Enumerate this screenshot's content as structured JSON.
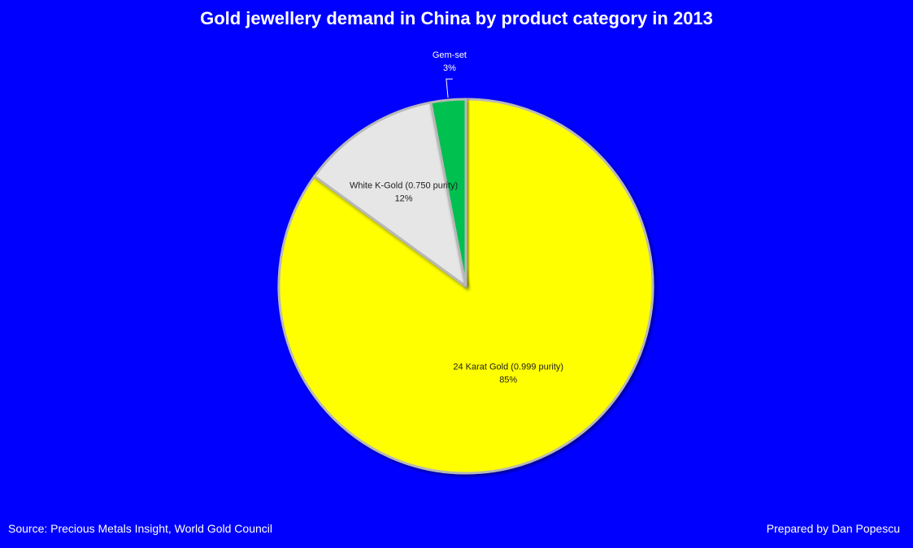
{
  "title": "Gold jewellery demand in China by product category in 2013",
  "source": "Source: Precious Metals Insight, World Gold Council",
  "credit": "Prepared by Dan Popescu",
  "chart_data": {
    "type": "pie",
    "title": "Gold jewellery demand in China by product category in 2013",
    "slices": [
      {
        "name": "24 Karat Gold (0.999 purity)",
        "value": 85,
        "label": "85%",
        "color": "#ffff00"
      },
      {
        "name": "White K-Gold (0.750 purity)",
        "value": 12,
        "label": "12%",
        "color": "#e6e6e6"
      },
      {
        "name": "Gem-set",
        "value": 3,
        "label": "3%",
        "color": "#00c050"
      }
    ],
    "start_angle_deg": 0,
    "direction": "clockwise",
    "background": "#0000ff"
  }
}
